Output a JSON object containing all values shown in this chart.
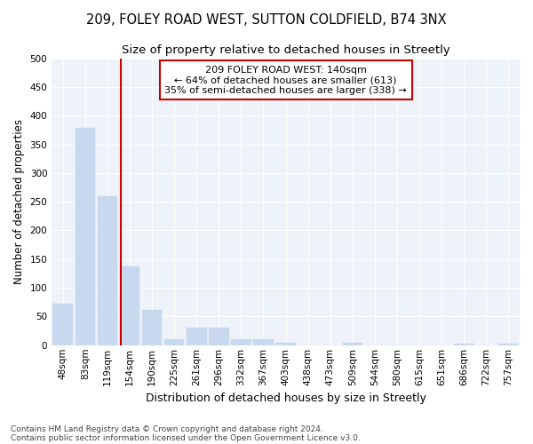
{
  "title1": "209, FOLEY ROAD WEST, SUTTON COLDFIELD, B74 3NX",
  "title2": "Size of property relative to detached houses in Streetly",
  "xlabel": "Distribution of detached houses by size in Streetly",
  "ylabel": "Number of detached properties",
  "bar_labels": [
    "48sqm",
    "83sqm",
    "119sqm",
    "154sqm",
    "190sqm",
    "225sqm",
    "261sqm",
    "296sqm",
    "332sqm",
    "367sqm",
    "403sqm",
    "438sqm",
    "473sqm",
    "509sqm",
    "544sqm",
    "580sqm",
    "615sqm",
    "651sqm",
    "686sqm",
    "722sqm",
    "757sqm"
  ],
  "bar_values": [
    73,
    378,
    260,
    137,
    62,
    10,
    30,
    30,
    10,
    11,
    5,
    0,
    0,
    4,
    0,
    0,
    0,
    0,
    3,
    0,
    2
  ],
  "bar_color": "#c8d8ee",
  "bar_edge_color": "#c8d8ee",
  "vline_color": "#cc0000",
  "vline_pos": 2.6,
  "annotation_lines": [
    "209 FOLEY ROAD WEST: 140sqm",
    "← 64% of detached houses are smaller (613)",
    "35% of semi-detached houses are larger (338) →"
  ],
  "annotation_box_facecolor": "#ffffff",
  "annotation_box_edgecolor": "#cc0000",
  "ylim": [
    0,
    500
  ],
  "yticks": [
    0,
    50,
    100,
    150,
    200,
    250,
    300,
    350,
    400,
    450,
    500
  ],
  "background_color": "#eef2f9",
  "grid_color": "#ffffff",
  "footer_line1": "Contains HM Land Registry data © Crown copyright and database right 2024.",
  "footer_line2": "Contains public sector information licensed under the Open Government Licence v3.0.",
  "title1_fontsize": 10.5,
  "title2_fontsize": 9.5,
  "xlabel_fontsize": 9,
  "ylabel_fontsize": 8.5,
  "tick_fontsize": 7.5,
  "annotation_fontsize": 8,
  "footer_fontsize": 6.5
}
